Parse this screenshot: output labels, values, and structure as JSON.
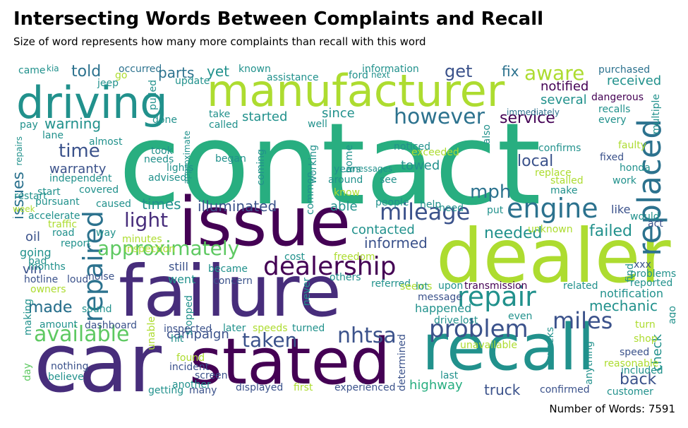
{
  "title": "Intersecting Words Between Complaints and Recall",
  "subtitle": "Size of word represents how many more complaints than recall with this word",
  "footer": "Number of Words: 7591",
  "colors": {
    "dark_purple": "#440154",
    "purple": "#472d7b",
    "indigo": "#3b528b",
    "blue": "#2c728e",
    "teal": "#21918c",
    "green_teal": "#28ae80",
    "green": "#5ec962",
    "lime": "#addc30",
    "yellow": "#fde725"
  },
  "words": [
    "contact",
    "dealer",
    "issue",
    "failure",
    "car",
    "stated",
    "recall",
    "manufacturer",
    "driving",
    "replaced",
    "repaired",
    "engine",
    "mileage",
    "approximately",
    "dealership",
    "repair",
    "problem",
    "miles",
    "available",
    "nhtsa",
    "taken",
    "however",
    "aware",
    "service",
    "mph",
    "light",
    "warning",
    "time",
    "issues",
    "made",
    "told",
    "parts",
    "yet",
    "get",
    "fix",
    "notified",
    "received",
    "several",
    "started",
    "since",
    "illuminated",
    "able",
    "times",
    "contacted",
    "informed",
    "needed",
    "failed",
    "mechanic",
    "back",
    "check",
    "truck",
    "highway",
    "campaign",
    "local",
    "towed",
    "warranty",
    "oil",
    "vin",
    "going",
    "made",
    "happened",
    "transmission",
    "notification",
    "related",
    "occurred",
    "information",
    "assistance",
    "known",
    "purchased",
    "dangerous",
    "recalls",
    "every",
    "multiple",
    "immediately",
    "confirms",
    "fixed",
    "honda",
    "work",
    "faulty",
    "replace",
    "stalled",
    "make",
    "like",
    "act",
    "unknown",
    "put",
    "need",
    "help",
    "people",
    "know",
    "see",
    "around",
    "common",
    "working",
    "home",
    "years",
    "messages",
    "coming",
    "began",
    "needs",
    "lights",
    "advised",
    "approximate",
    "took",
    "independent",
    "covered",
    "restart",
    "start",
    "pursuant",
    "lane",
    "pay",
    "almost",
    "done",
    "called",
    "take",
    "well",
    "update",
    "pulled",
    "jeep",
    "go",
    "kia",
    "came",
    "ford",
    "next",
    "noticed",
    "exceeded",
    "also",
    "tool",
    "repairs",
    "week",
    "accelerate",
    "traffic",
    "caused",
    "road",
    "way",
    "report",
    "minutes",
    "inspection",
    "xxx",
    "problems",
    "reported",
    "find",
    "still",
    "became",
    "freedom",
    "cost",
    "noise",
    "loud",
    "hotline",
    "owners",
    "months",
    "making",
    "bad",
    "sound",
    "amount",
    "dashboard",
    "unable",
    "stopped",
    "went",
    "concern",
    "never",
    "others",
    "referred",
    "seems",
    "lot",
    "upon",
    "message",
    "determined",
    "drive",
    "lost",
    "even",
    "weeks",
    "turn",
    "shop",
    "ago",
    "speed",
    "unavailable",
    "anything",
    "reasonable",
    "included",
    "inspected",
    "later",
    "speeds",
    "turned",
    "hit",
    "found",
    "incident",
    "screen",
    "another",
    "getting",
    "many",
    "displayed",
    "first",
    "experienced",
    "last",
    "confirmed",
    "customer",
    "nothing",
    "believe",
    "day",
    "would"
  ]
}
